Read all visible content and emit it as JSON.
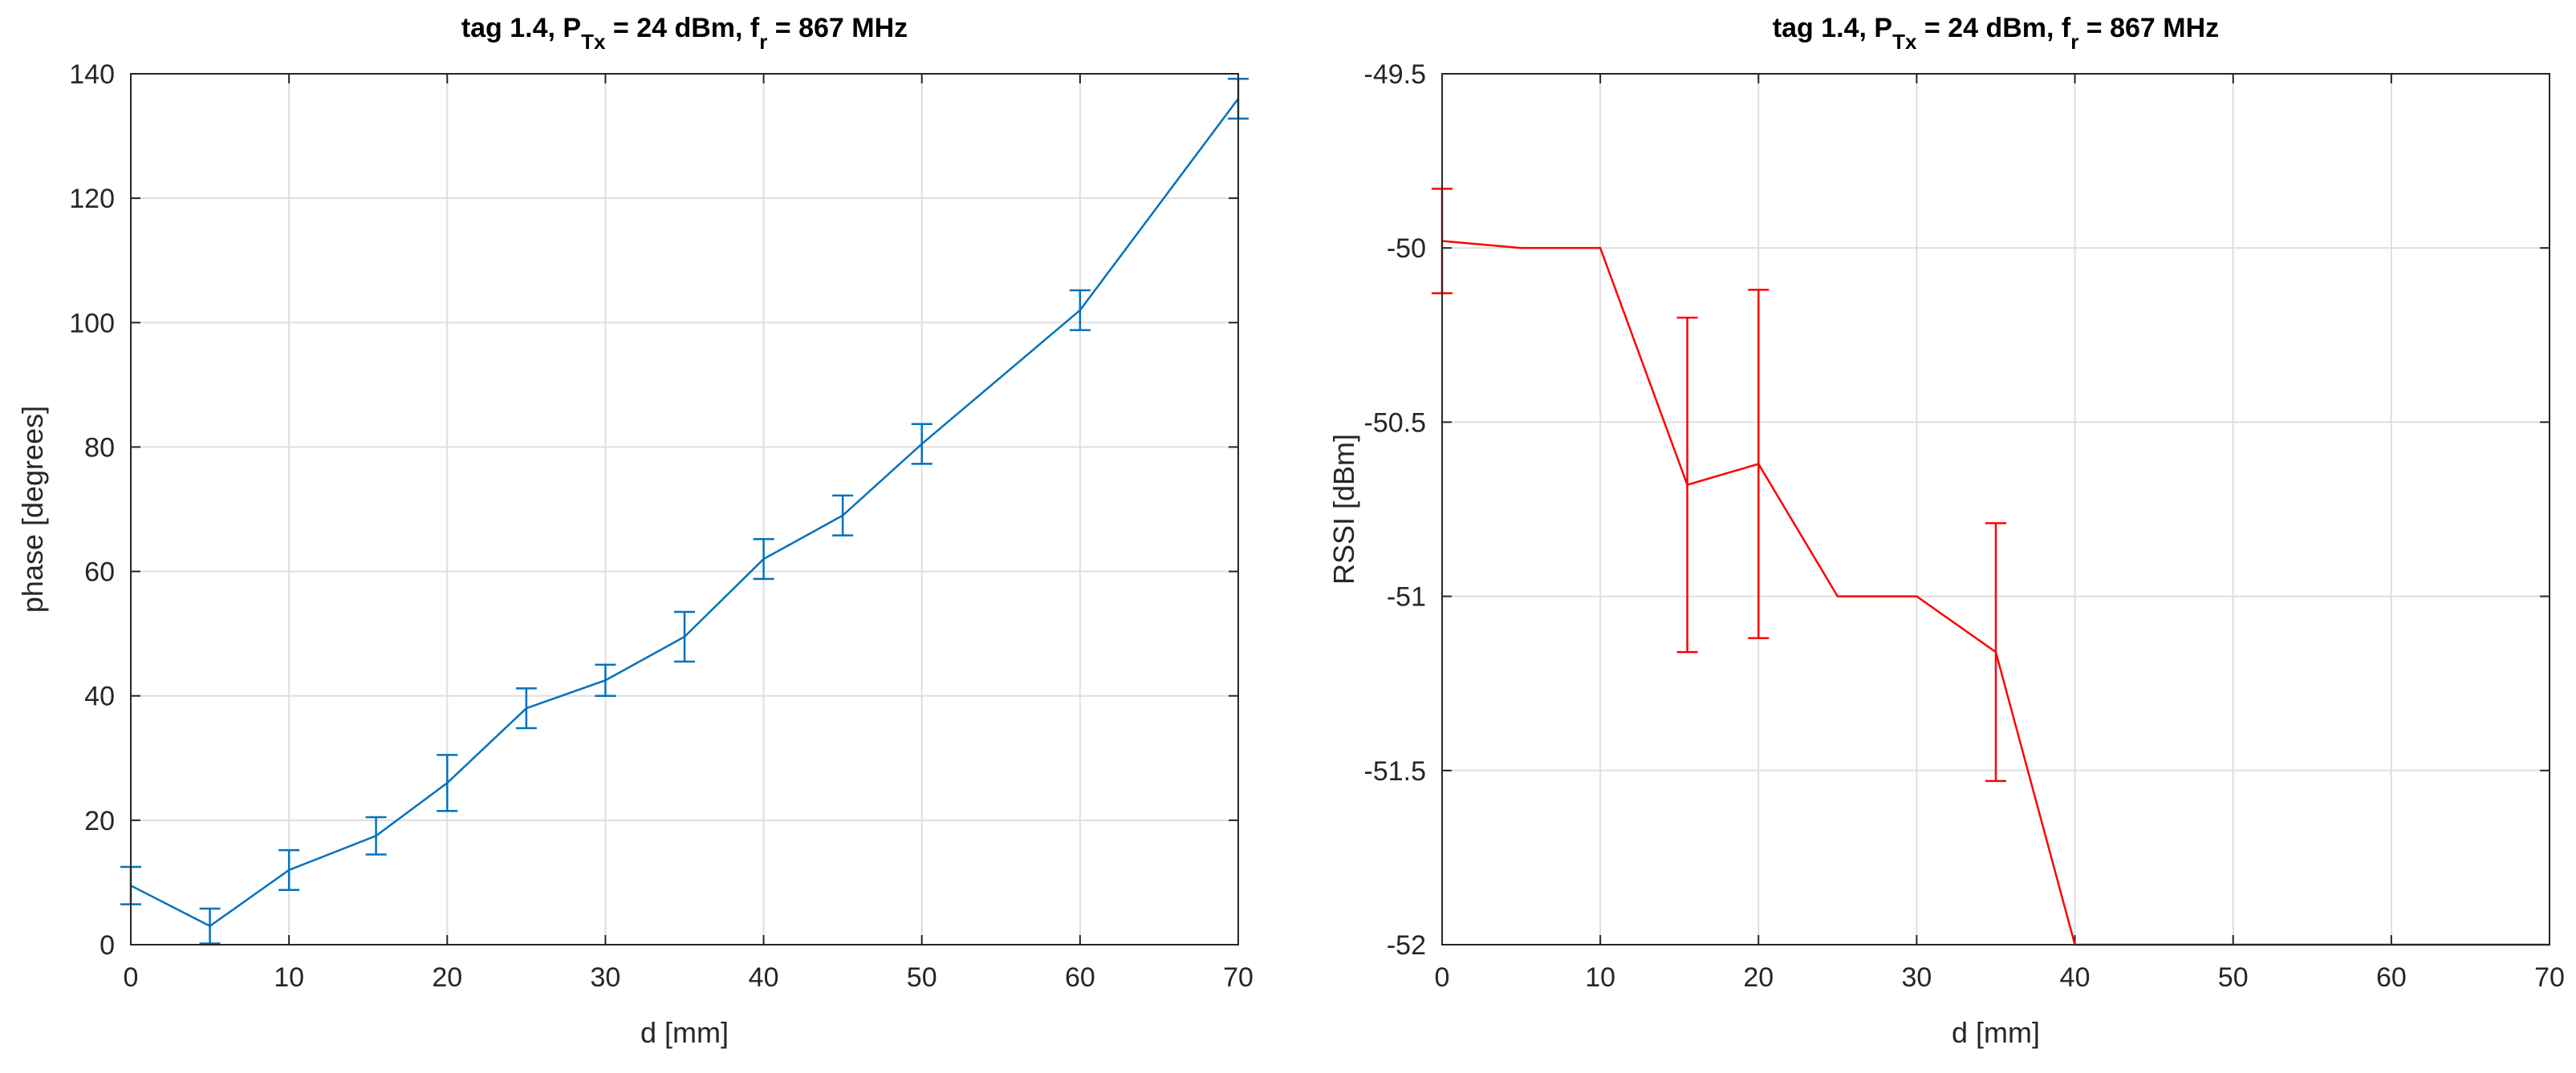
{
  "chart_data": [
    {
      "type": "line",
      "title_parts": [
        "tag 1.4, P",
        "Tx",
        " = 24 dBm, f",
        "r",
        " = 867 MHz"
      ],
      "xlabel": "d [mm]",
      "ylabel": "phase [degrees]",
      "xlim": [
        0,
        70
      ],
      "ylim": [
        0,
        140
      ],
      "xticks": [
        "0",
        "10",
        "20",
        "30",
        "40",
        "50",
        "60",
        "70"
      ],
      "yticks": [
        "0",
        "20",
        "40",
        "60",
        "80",
        "100",
        "120",
        "140"
      ],
      "grid": true,
      "color": "#0072BD",
      "x": [
        0,
        5,
        10,
        15.5,
        20,
        25,
        30,
        35,
        40,
        45,
        50,
        60,
        70
      ],
      "y": [
        9.5,
        3,
        12,
        17.5,
        26,
        38,
        42.5,
        49.5,
        62,
        69,
        80.5,
        102,
        136
      ],
      "err": [
        3,
        2.8,
        3.2,
        3,
        4.5,
        3.2,
        2.5,
        4,
        3.2,
        3.2,
        3.2,
        3.2,
        3.2
      ]
    },
    {
      "type": "line",
      "title_parts": [
        "tag 1.4, P",
        "Tx",
        " = 24 dBm, f",
        "r",
        " = 867 MHz"
      ],
      "xlabel": "d [mm]",
      "ylabel": "RSSI [dBm]",
      "xlim": [
        0,
        70
      ],
      "ylim": [
        -52,
        -49.5
      ],
      "xticks": [
        "0",
        "10",
        "20",
        "30",
        "40",
        "50",
        "60",
        "70"
      ],
      "yticks": [
        "-52",
        "-51.5",
        "-51",
        "-50.5",
        "-50",
        "-49.5"
      ],
      "grid": true,
      "color": "#FF0000",
      "x": [
        0,
        5,
        10,
        15.5,
        20,
        25,
        30,
        35,
        40,
        45,
        50,
        60,
        70
      ],
      "y": [
        -49.98,
        -50,
        -50,
        -50.68,
        -50.62,
        -51,
        -51,
        -51.16,
        -52,
        -52,
        -52,
        -52,
        -52
      ],
      "err": [
        0.15,
        0,
        0,
        0.48,
        0.5,
        0,
        0,
        0.37,
        0,
        0,
        0,
        0,
        0
      ]
    }
  ]
}
